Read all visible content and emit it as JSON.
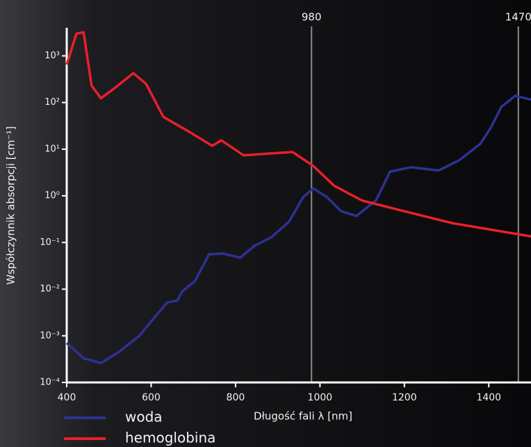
{
  "chart_data": {
    "type": "line",
    "x_label": "Długość fali λ [nm]",
    "y_label": "Współczynnik absorpcji [cm⁻¹]",
    "xlim": [
      400,
      1500
    ],
    "xticks": [
      400,
      600,
      800,
      1000,
      1200,
      1400
    ],
    "ylim": [
      0.0001,
      4000
    ],
    "yticks": [
      {
        "value": 0.0001,
        "label": "10⁻⁴"
      },
      {
        "value": 0.001,
        "label": "10⁻³"
      },
      {
        "value": 0.01,
        "label": "10⁻²"
      },
      {
        "value": 0.1,
        "label": "10⁻¹"
      },
      {
        "value": 1,
        "label": "10⁰"
      },
      {
        "value": 10,
        "label": "10¹"
      },
      {
        "value": 100,
        "label": "10²"
      },
      {
        "value": 1000,
        "label": "10³"
      }
    ],
    "y_log": true,
    "markers": [
      980,
      1470
    ],
    "series": [
      {
        "name": "woda",
        "color": "#2e3192",
        "x": [
          400,
          440,
          481,
          522,
          572,
          605,
          638,
          662,
          674,
          704,
          737,
          770,
          811,
          845,
          885,
          927,
          960,
          984,
          1017,
          1050,
          1086,
          1133,
          1166,
          1215,
          1281,
          1330,
          1380,
          1405,
          1430,
          1463,
          1500
        ],
        "values": [
          0.0007,
          0.00033,
          0.00026,
          0.00044,
          0.001,
          0.0023,
          0.0052,
          0.0057,
          0.009,
          0.015,
          0.056,
          0.058,
          0.047,
          0.085,
          0.13,
          0.28,
          0.93,
          1.45,
          0.93,
          0.47,
          0.37,
          0.8,
          3.3,
          4.1,
          3.5,
          5.8,
          13,
          29,
          81,
          140,
          115
        ]
      },
      {
        "name": "hemoglobina",
        "color": "#e8202a",
        "x": [
          400,
          423,
          440,
          459,
          481,
          514,
          558,
          588,
          629,
          687,
          745,
          766,
          819,
          935,
          984,
          1033,
          1100,
          1199,
          1314,
          1500
        ],
        "values": [
          650,
          3000,
          3200,
          230,
          123,
          205,
          425,
          250,
          49,
          24.5,
          11.8,
          15.5,
          7.4,
          8.7,
          4.4,
          1.66,
          0.79,
          0.47,
          0.26,
          0.135
        ]
      }
    ]
  }
}
